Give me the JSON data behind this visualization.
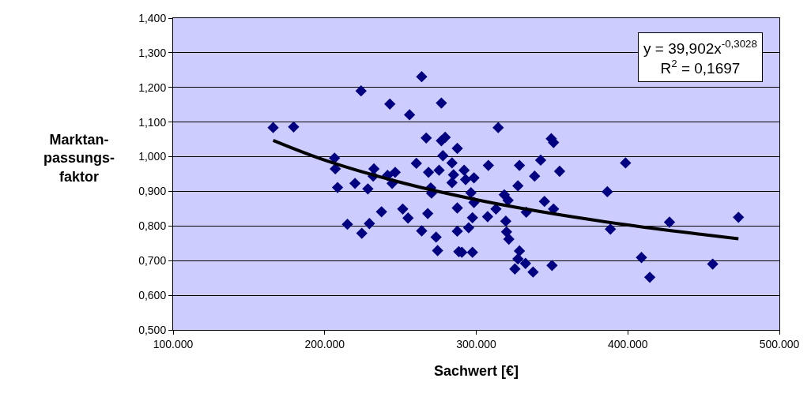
{
  "chart_data": {
    "type": "scatter",
    "xlabel": "Sachwert [€]",
    "ylabel": "Marktan-\npassungs-\nfaktor",
    "xlim": [
      100000,
      500000
    ],
    "xticks": [
      {
        "value": 100000,
        "label": "100.000"
      },
      {
        "value": 200000,
        "label": "200.000"
      },
      {
        "value": 300000,
        "label": "300.000"
      },
      {
        "value": 400000,
        "label": "400.000"
      },
      {
        "value": 500000,
        "label": "500.000"
      }
    ],
    "ylim": [
      0.5,
      1.4
    ],
    "yticks": [
      {
        "value": 0.5,
        "label": "0,500"
      },
      {
        "value": 0.6,
        "label": "0,600"
      },
      {
        "value": 0.7,
        "label": "0,700"
      },
      {
        "value": 0.8,
        "label": "0,800"
      },
      {
        "value": 0.9,
        "label": "0,900"
      },
      {
        "value": 1.0,
        "label": "1,000"
      },
      {
        "value": 1.1,
        "label": "1,100"
      },
      {
        "value": 1.2,
        "label": "1,200"
      },
      {
        "value": 1.3,
        "label": "1,300"
      },
      {
        "value": 1.4,
        "label": "1,400"
      }
    ],
    "grid": "y",
    "marker": "diamond",
    "annotations": [
      "y = 39,902x$^{-0,3028}$\nR$^{2}$ = 0,1697"
    ],
    "series": [
      {
        "color": "#000080",
        "x": [
          166000,
          179500,
          224000,
          264000,
          243000,
          256000,
          277000,
          267000,
          277000,
          279500,
          287500,
          206500,
          207000,
          208500,
          220000,
          228500,
          232500,
          232000,
          241500,
          246500,
          244500,
          215000,
          224500,
          229500,
          237500,
          251500,
          255000,
          260500,
          268500,
          275500,
          278000,
          284000,
          285000,
          284000,
          270000,
          270500,
          268000,
          264000,
          273500,
          274500,
          287500,
          287500,
          288500,
          292000,
          293000,
          298500,
          308000,
          314500,
          296500,
          298500,
          297500,
          295000,
          290500,
          297500,
          307500,
          313000,
          318500,
          321000,
          319500,
          320000,
          321500,
          328500,
          327500,
          325500,
          332500,
          337500,
          350000,
          333000,
          327500,
          328500,
          338500,
          342500,
          349500,
          351000,
          355000,
          345000,
          351000,
          386500,
          388500,
          398500,
          409000,
          414500,
          427500,
          456000,
          473000
        ],
        "values": [
          1.084,
          1.086,
          1.19,
          1.231,
          1.152,
          1.121,
          1.155,
          1.054,
          1.046,
          1.056,
          1.024,
          0.996,
          0.965,
          0.911,
          0.923,
          0.907,
          0.965,
          0.944,
          0.946,
          0.955,
          0.923,
          0.805,
          0.779,
          0.807,
          0.841,
          0.849,
          0.823,
          0.981,
          0.955,
          0.961,
          1.003,
          0.982,
          0.948,
          0.925,
          0.91,
          0.895,
          0.836,
          0.786,
          0.768,
          0.729,
          0.852,
          0.785,
          0.726,
          0.961,
          0.934,
          0.939,
          0.975,
          1.084,
          0.896,
          0.868,
          0.824,
          0.795,
          0.724,
          0.724,
          0.827,
          0.849,
          0.89,
          0.874,
          0.814,
          0.783,
          0.762,
          0.728,
          0.705,
          0.676,
          0.692,
          0.667,
          0.686,
          0.84,
          0.916,
          0.975,
          0.944,
          0.99,
          1.052,
          1.041,
          0.958,
          0.871,
          0.849,
          0.899,
          0.791,
          0.982,
          0.709,
          0.652,
          0.811,
          0.69,
          0.825
        ]
      },
      {
        "type": "line",
        "color": "#000000",
        "marker": "none",
        "x": [
          166000,
          200000,
          250000,
          300000,
          350000,
          400000,
          450000,
          473000
        ],
        "values": [
          1.047,
          0.99,
          0.926,
          0.876,
          0.836,
          0.803,
          0.775,
          0.763
        ]
      }
    ]
  }
}
